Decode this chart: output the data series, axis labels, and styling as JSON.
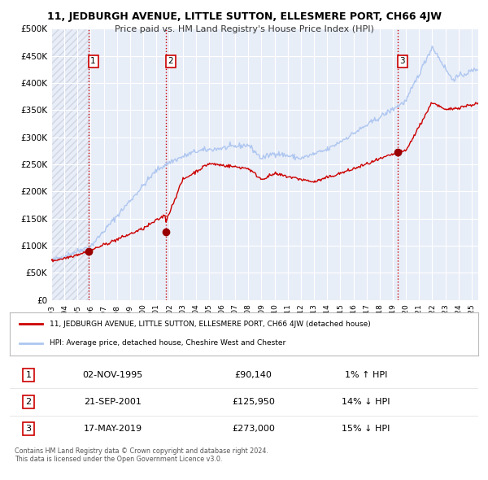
{
  "title": "11, JEDBURGH AVENUE, LITTLE SUTTON, ELLESMERE PORT, CH66 4JW",
  "subtitle": "Price paid vs. HM Land Registry's House Price Index (HPI)",
  "background_color": "#ffffff",
  "plot_bg_color": "#e8eef8",
  "grid_color": "#ffffff",
  "hpi_color": "#aec6f0",
  "price_color": "#cc0000",
  "marker_color": "#990000",
  "sale_points": [
    {
      "year": 1995.84,
      "price": 90140,
      "label": "1"
    },
    {
      "year": 2001.72,
      "price": 125950,
      "label": "2"
    },
    {
      "year": 2019.37,
      "price": 273000,
      "label": "3"
    }
  ],
  "vline_color": "#cc0000",
  "legend_entries": [
    "11, JEDBURGH AVENUE, LITTLE SUTTON, ELLESMERE PORT, CH66 4JW (detached house)",
    "HPI: Average price, detached house, Cheshire West and Chester"
  ],
  "table_rows": [
    {
      "num": "1",
      "date": "02-NOV-1995",
      "price": "£90,140",
      "hpi": "1% ↑ HPI"
    },
    {
      "num": "2",
      "date": "21-SEP-2001",
      "price": "£125,950",
      "hpi": "14% ↓ HPI"
    },
    {
      "num": "3",
      "date": "17-MAY-2019",
      "price": "£273,000",
      "hpi": "15% ↓ HPI"
    }
  ],
  "footnote": "Contains HM Land Registry data © Crown copyright and database right 2024.\nThis data is licensed under the Open Government Licence v3.0.",
  "ylim": [
    0,
    500000
  ],
  "yticks": [
    0,
    50000,
    100000,
    150000,
    200000,
    250000,
    300000,
    350000,
    400000,
    450000,
    500000
  ],
  "ytick_labels": [
    "£0",
    "£50K",
    "£100K",
    "£150K",
    "£200K",
    "£250K",
    "£300K",
    "£350K",
    "£400K",
    "£450K",
    "£500K"
  ],
  "xlim_start": 1993.0,
  "xlim_end": 2025.5
}
